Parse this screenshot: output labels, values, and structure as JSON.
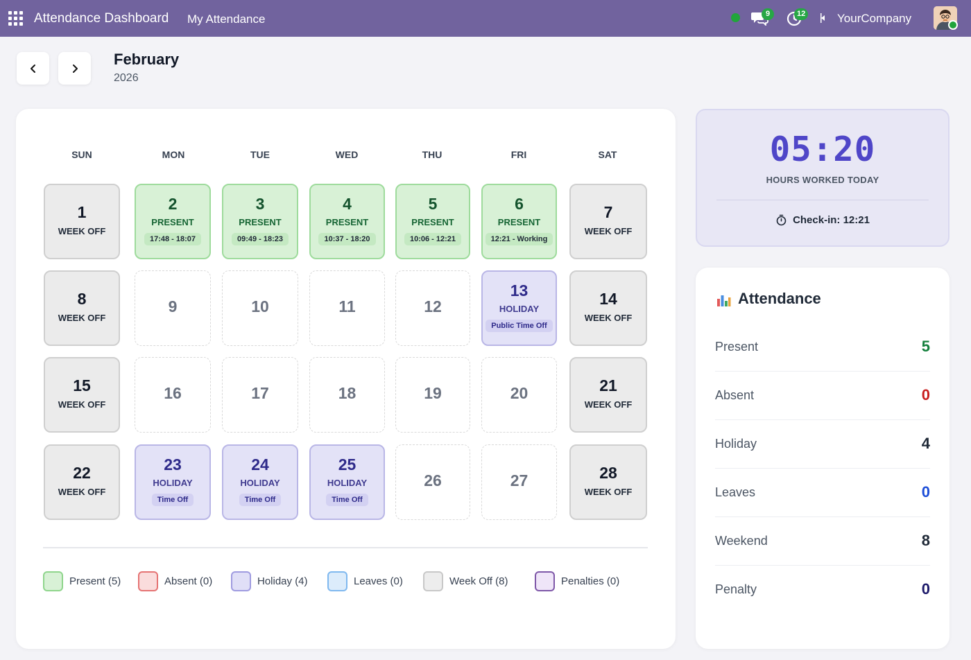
{
  "header": {
    "app_title": "Attendance Dashboard",
    "nav_link": "My Attendance",
    "chat_badge": "9",
    "activity_badge": "12",
    "company": "YourCompany"
  },
  "month_nav": {
    "month": "February",
    "year": "2026"
  },
  "calendar": {
    "weekdays": [
      "SUN",
      "MON",
      "TUE",
      "WED",
      "THU",
      "FRI",
      "SAT"
    ],
    "days": [
      {
        "num": "1",
        "type": "weekoff",
        "label": "WEEK OFF",
        "sub": ""
      },
      {
        "num": "2",
        "type": "present",
        "label": "PRESENT",
        "sub": "17:48 - 18:07"
      },
      {
        "num": "3",
        "type": "present",
        "label": "PRESENT",
        "sub": "09:49 - 18:23"
      },
      {
        "num": "4",
        "type": "present",
        "label": "PRESENT",
        "sub": "10:37 - 18:20"
      },
      {
        "num": "5",
        "type": "present",
        "label": "PRESENT",
        "sub": "10:06 - 12:21"
      },
      {
        "num": "6",
        "type": "present",
        "label": "PRESENT",
        "sub": "12:21 - Working"
      },
      {
        "num": "7",
        "type": "weekoff",
        "label": "WEEK OFF",
        "sub": ""
      },
      {
        "num": "8",
        "type": "weekoff",
        "label": "WEEK OFF",
        "sub": ""
      },
      {
        "num": "9",
        "type": "empty",
        "label": "",
        "sub": ""
      },
      {
        "num": "10",
        "type": "empty",
        "label": "",
        "sub": ""
      },
      {
        "num": "11",
        "type": "empty",
        "label": "",
        "sub": ""
      },
      {
        "num": "12",
        "type": "empty",
        "label": "",
        "sub": ""
      },
      {
        "num": "13",
        "type": "holiday",
        "label": "HOLIDAY",
        "sub": "Public Time Off"
      },
      {
        "num": "14",
        "type": "weekoff",
        "label": "WEEK OFF",
        "sub": ""
      },
      {
        "num": "15",
        "type": "weekoff",
        "label": "WEEK OFF",
        "sub": ""
      },
      {
        "num": "16",
        "type": "empty",
        "label": "",
        "sub": ""
      },
      {
        "num": "17",
        "type": "empty",
        "label": "",
        "sub": ""
      },
      {
        "num": "18",
        "type": "empty",
        "label": "",
        "sub": ""
      },
      {
        "num": "19",
        "type": "empty",
        "label": "",
        "sub": ""
      },
      {
        "num": "20",
        "type": "empty",
        "label": "",
        "sub": ""
      },
      {
        "num": "21",
        "type": "weekoff",
        "label": "WEEK OFF",
        "sub": ""
      },
      {
        "num": "22",
        "type": "weekoff",
        "label": "WEEK OFF",
        "sub": ""
      },
      {
        "num": "23",
        "type": "holiday",
        "label": "HOLIDAY",
        "sub": "Time Off"
      },
      {
        "num": "24",
        "type": "holiday",
        "label": "HOLIDAY",
        "sub": "Time Off"
      },
      {
        "num": "25",
        "type": "holiday",
        "label": "HOLIDAY",
        "sub": "Time Off"
      },
      {
        "num": "26",
        "type": "empty",
        "label": "",
        "sub": ""
      },
      {
        "num": "27",
        "type": "empty",
        "label": "",
        "sub": ""
      },
      {
        "num": "28",
        "type": "weekoff",
        "label": "WEEK OFF",
        "sub": ""
      }
    ]
  },
  "legend": [
    {
      "label": "Present (5)",
      "fill": "#d8f1d6",
      "border": "#8fd58c"
    },
    {
      "label": "Absent (0)",
      "fill": "#fadcdc",
      "border": "#e57373"
    },
    {
      "label": "Holiday (4)",
      "fill": "#e0dff7",
      "border": "#9f9be0"
    },
    {
      "label": "Leaves (0)",
      "fill": "#dcecfb",
      "border": "#7fb8ef"
    },
    {
      "label": "Week Off (8)",
      "fill": "#ededed",
      "border": "#c8c8c8"
    },
    {
      "label": "Penalties (0)",
      "fill": "#efe5f8",
      "border": "#7e57a8"
    }
  ],
  "hours": {
    "time": "05:20",
    "label": "HOURS WORKED TODAY",
    "checkin": "Check-in: 12:21"
  },
  "summary": {
    "title": "Attendance",
    "rows": [
      {
        "label": "Present",
        "value": "5",
        "color": "#15803d"
      },
      {
        "label": "Absent",
        "value": "0",
        "color": "#c81e1e"
      },
      {
        "label": "Holiday",
        "value": "4",
        "color": "#1f2937"
      },
      {
        "label": "Leaves",
        "value": "0",
        "color": "#1d4ed8"
      },
      {
        "label": "Weekend",
        "value": "8",
        "color": "#1f2937"
      },
      {
        "label": "Penalty",
        "value": "0",
        "color": "#1e1b6b"
      }
    ]
  }
}
